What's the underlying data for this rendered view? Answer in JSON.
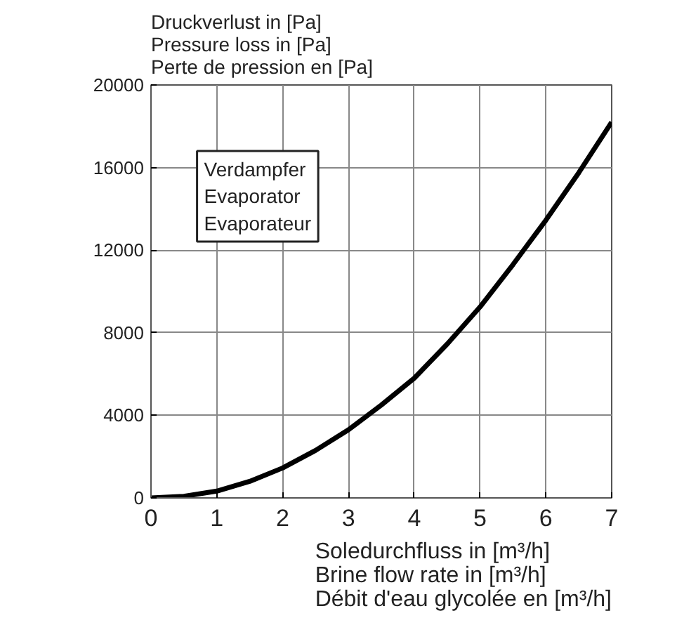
{
  "chart_data": {
    "type": "line",
    "title": "Druckverlust in [Pa]\nPressure loss in [Pa]\nPerte de pression en [Pa]",
    "xlabel": "Soledurchfluss in [m³/h]\nBrine flow rate in [m³/h]\nDébit d'eau glycolée en [m³/h]",
    "annotations": [
      "Verdampfer\nEvaporator\nEvaporateur"
    ],
    "x": [
      0,
      0.5,
      1,
      1.5,
      2,
      2.5,
      3,
      3.5,
      4,
      4.5,
      5,
      5.5,
      6,
      6.5,
      7
    ],
    "series": [
      {
        "color": "#000000",
        "values": [
          0,
          80,
          330,
          800,
          1450,
          2300,
          3300,
          4500,
          5800,
          7450,
          9250,
          11300,
          13450,
          15750,
          18200
        ]
      }
    ],
    "xlim": [
      0,
      7
    ],
    "xticks": [
      0,
      1,
      2,
      3,
      4,
      5,
      6,
      7
    ],
    "ylim": [
      0,
      20000
    ],
    "yticks": [
      0,
      4000,
      8000,
      12000,
      16000,
      20000
    ],
    "grid": true
  }
}
